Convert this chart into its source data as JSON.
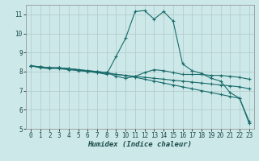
{
  "xlabel": "Humidex (Indice chaleur)",
  "ylabel": "",
  "bg_color": "#cce8e8",
  "grid_color": "#b0c8c8",
  "line_color": "#1a6b6b",
  "xlim": [
    -0.5,
    23.5
  ],
  "ylim": [
    5,
    11.5
  ],
  "yticks": [
    5,
    6,
    7,
    8,
    9,
    10,
    11
  ],
  "xticks": [
    0,
    1,
    2,
    3,
    4,
    5,
    6,
    7,
    8,
    9,
    10,
    11,
    12,
    13,
    14,
    15,
    16,
    17,
    18,
    19,
    20,
    21,
    22,
    23
  ],
  "line1_x": [
    0,
    1,
    2,
    3,
    4,
    5,
    6,
    7,
    8,
    9,
    10,
    11,
    12,
    13,
    14,
    15,
    16,
    17,
    18,
    19,
    20,
    21,
    22,
    23
  ],
  "line1_y": [
    8.3,
    8.2,
    8.15,
    8.2,
    8.15,
    8.1,
    8.0,
    7.95,
    7.85,
    8.8,
    9.75,
    11.15,
    11.2,
    10.75,
    11.15,
    10.65,
    8.4,
    8.05,
    7.9,
    7.65,
    7.5,
    6.9,
    6.6,
    5.3
  ],
  "line2_x": [
    0,
    1,
    2,
    3,
    4,
    5,
    6,
    7,
    8,
    9,
    10,
    11,
    12,
    13,
    14,
    15,
    16,
    17,
    18,
    19,
    20,
    21,
    22,
    23
  ],
  "line2_y": [
    8.3,
    8.25,
    8.2,
    8.2,
    8.15,
    8.1,
    8.05,
    8.0,
    7.95,
    7.75,
    7.65,
    7.75,
    7.95,
    8.1,
    8.05,
    7.95,
    7.85,
    7.85,
    7.85,
    7.8,
    7.8,
    7.75,
    7.7,
    7.6
  ],
  "line3_x": [
    0,
    1,
    2,
    3,
    4,
    5,
    6,
    7,
    8,
    9,
    10,
    11,
    12,
    13,
    14,
    15,
    16,
    17,
    18,
    19,
    20,
    21,
    22,
    23
  ],
  "line3_y": [
    8.3,
    8.25,
    8.2,
    8.2,
    8.15,
    8.1,
    8.05,
    8.0,
    7.95,
    7.85,
    7.8,
    7.75,
    7.7,
    7.65,
    7.6,
    7.55,
    7.5,
    7.45,
    7.4,
    7.35,
    7.3,
    7.25,
    7.2,
    7.1
  ],
  "line4_x": [
    0,
    1,
    2,
    3,
    4,
    5,
    6,
    7,
    8,
    9,
    10,
    11,
    12,
    13,
    14,
    15,
    16,
    17,
    18,
    19,
    20,
    21,
    22,
    23
  ],
  "line4_y": [
    8.3,
    8.25,
    8.2,
    8.15,
    8.1,
    8.05,
    8.0,
    7.95,
    7.9,
    7.85,
    7.8,
    7.7,
    7.6,
    7.5,
    7.4,
    7.3,
    7.2,
    7.1,
    7.0,
    6.9,
    6.8,
    6.7,
    6.6,
    5.4
  ]
}
